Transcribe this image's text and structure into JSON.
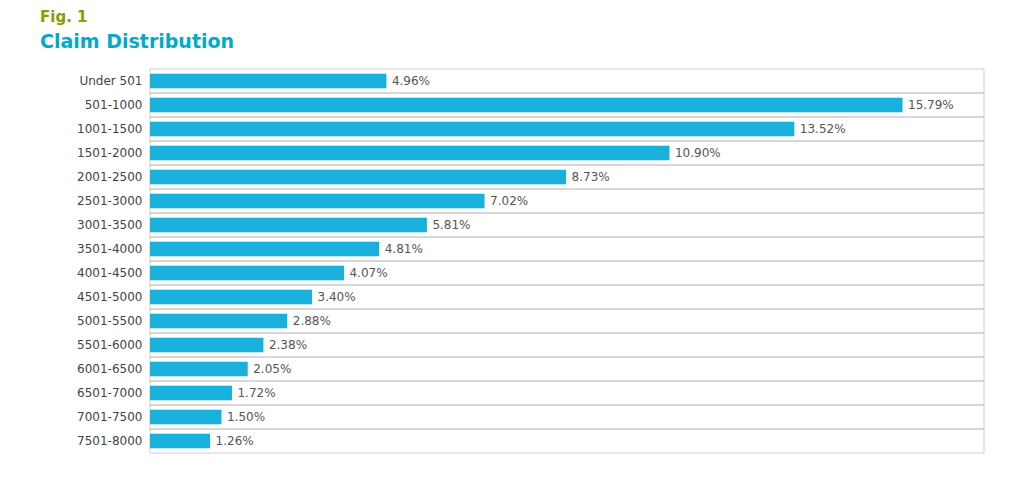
{
  "chart_data": {
    "type": "bar",
    "orientation": "horizontal",
    "title": "Fig. 1",
    "subtitle": "Claim Distribution",
    "categories": [
      "Under 501",
      " 501-1000",
      "1001-1500",
      "1501-2000",
      "2001-2500",
      "2501-3000",
      "3001-3500",
      "3501-4000",
      "4001-4500",
      "4501-5000",
      "5001-5500",
      "5501-6000",
      "6001-6500",
      "6501-7000",
      "7001-7500",
      "7501-8000"
    ],
    "values": [
      4.96,
      15.79,
      13.52,
      10.9,
      8.73,
      7.02,
      5.81,
      4.81,
      4.07,
      3.4,
      2.88,
      2.38,
      2.05,
      1.72,
      1.5,
      1.26
    ],
    "value_labels": [
      "4.96%",
      "15.79%",
      "13.52%",
      "10.90%",
      "8.73%",
      "7.02%",
      "5.81%",
      "4.81%",
      "4.07%",
      "3.40%",
      "2.88%",
      "2.38%",
      "2.05%",
      "1.72%",
      "1.50%",
      "1.26%"
    ],
    "data_labels": true,
    "color": "#1ab0dc",
    "xlim": [
      0,
      17.5
    ],
    "tick_labels": "y"
  }
}
